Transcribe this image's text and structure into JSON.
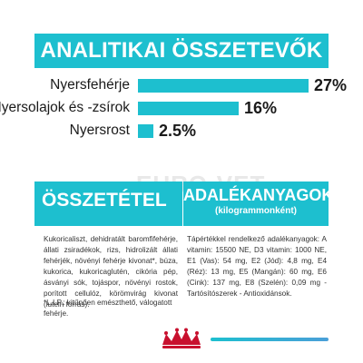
{
  "header": {
    "title": "ANALITIKAI ÖSSZETEVŐK"
  },
  "analytics": [
    {
      "label": "Nyersfehérje",
      "value_text": "27%",
      "value": 27
    },
    {
      "label": "Nyersolajok és -zsírok",
      "value_text": "16%",
      "value": 16
    },
    {
      "label": "Nyersrost",
      "value_text": "2.5%",
      "value": 2.5
    }
  ],
  "watermark": "EURO-VET",
  "composition": {
    "title": "ÖSSZETÉTEL",
    "text": "Kukoricaliszt, dehidratált baromfifehérje, állati zsiradékok, rizs, hidrolizált állati fehérjék, növényi fehérje kivonat*, búza, kukorica, kukoricaglutén, cikória pép, ásványi sók, tojáspor, növényi rostok, porított cellulóz, körömvirág kivonat (lutein forrás).",
    "footnote": "*L.I.P.: kitűnően emészthető, válogatott fehérje."
  },
  "additives": {
    "title": "ADALÉKANYAGOK",
    "subtitle": "(kilogrammonként)",
    "text": "Tápértékkel rendelkező adalékanyagok: A vitamin: 15500 NE, D3 vitamin: 1000 NE, E1 (Vas): 54 mg, E2 (Jód): 4,8 mg, E4 (Réz): 13 mg, E5 (Mangán): 60 mg, E6 (Cink): 137 mg, E8 (Szelén): 0,09 mg - Tartósítószerek - Antioxidánsok."
  },
  "colors": {
    "accent": "#1dbfcf"
  },
  "logo": {
    "icon": "royal-canin-crown-logo"
  }
}
